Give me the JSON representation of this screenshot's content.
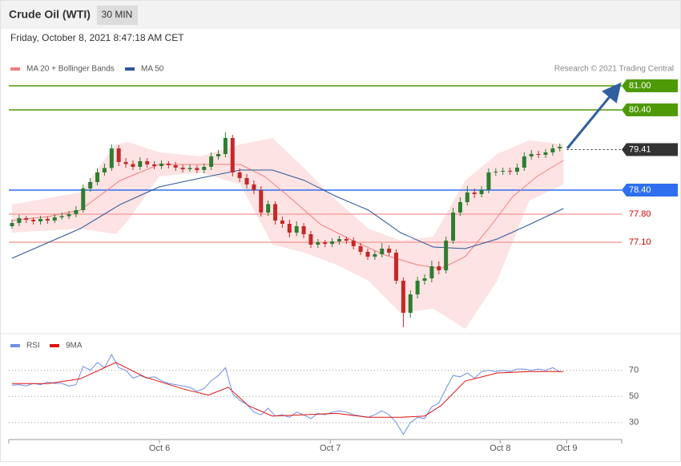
{
  "header": {
    "title": "Crude Oil (WTI)",
    "interval": "30 MIN",
    "date": "Friday, October 8, 2021 8:47:18 AM CET"
  },
  "chart_data": [
    {
      "type": "candlestick",
      "credit": "Research © 2021 Trading Central",
      "xlim": [
        -0.45,
        85.7
      ],
      "ylim": [
        74.9,
        81.7
      ],
      "up_color": "#2e7d32",
      "down_color": "#c62828",
      "open": [
        77.5,
        77.58,
        77.7,
        77.66,
        77.62,
        77.68,
        77.64,
        77.72,
        77.75,
        77.8,
        77.9,
        78.44,
        78.6,
        78.84,
        78.95,
        79.44,
        79.1,
        79.05,
        78.98,
        79.12,
        79.04,
        79.0,
        79.06,
        79.02,
        78.96,
        78.92,
        78.95,
        78.9,
        78.98,
        79.24,
        79.3,
        79.7,
        78.84,
        78.7,
        78.54,
        78.4,
        77.84,
        78.05,
        77.64,
        77.56,
        77.34,
        77.5,
        77.3,
        77.04,
        77.1,
        77.06,
        77.12,
        77.18,
        77.14,
        77.0,
        76.86,
        76.74,
        76.8,
        76.94,
        76.84,
        76.14,
        75.34,
        75.8,
        76.14,
        76.2,
        76.5,
        76.4,
        77.14,
        77.84,
        78.1,
        78.34,
        78.3,
        78.4,
        78.84,
        78.86,
        78.88,
        78.86,
        78.96,
        79.24,
        79.3,
        79.28,
        79.34,
        79.44
      ],
      "high": [
        77.66,
        77.78,
        77.76,
        77.72,
        77.76,
        77.74,
        77.8,
        77.84,
        77.88,
        78.0,
        78.54,
        78.7,
        78.94,
        79.06,
        79.54,
        79.52,
        79.2,
        79.14,
        79.22,
        79.2,
        79.12,
        79.14,
        79.12,
        79.1,
        79.04,
        79.04,
        79.02,
        79.06,
        79.34,
        79.4,
        79.84,
        79.78,
        78.94,
        78.8,
        78.64,
        78.5,
        78.14,
        78.12,
        77.74,
        77.66,
        77.62,
        77.58,
        77.38,
        77.18,
        77.16,
        77.2,
        77.26,
        77.24,
        77.22,
        77.08,
        76.94,
        76.88,
        77.08,
        77.02,
        76.92,
        76.22,
        75.9,
        76.24,
        76.3,
        76.64,
        76.62,
        77.24,
        77.96,
        78.22,
        78.5,
        78.44,
        78.5,
        78.94,
        78.94,
        78.96,
        78.96,
        79.06,
        79.34,
        79.4,
        79.38,
        79.42,
        79.54,
        79.56
      ],
      "low": [
        77.44,
        77.5,
        77.58,
        77.54,
        77.54,
        77.56,
        77.58,
        77.66,
        77.68,
        77.72,
        77.84,
        78.36,
        78.52,
        78.76,
        78.88,
        79.0,
        78.96,
        78.9,
        78.9,
        78.96,
        78.92,
        78.92,
        78.94,
        78.88,
        78.84,
        78.86,
        78.82,
        78.82,
        78.9,
        79.16,
        79.22,
        78.74,
        78.6,
        78.44,
        78.3,
        77.74,
        77.76,
        77.54,
        77.46,
        77.22,
        77.26,
        77.2,
        76.96,
        76.96,
        76.98,
        76.98,
        77.04,
        77.06,
        76.92,
        76.78,
        76.66,
        76.66,
        76.72,
        76.76,
        76.06,
        74.98,
        75.22,
        75.7,
        76.04,
        76.1,
        76.3,
        76.32,
        77.06,
        77.76,
        78.02,
        78.2,
        78.22,
        78.32,
        78.76,
        78.78,
        78.78,
        78.78,
        78.88,
        79.16,
        79.2,
        79.2,
        79.26,
        79.36
      ],
      "close": [
        77.58,
        77.7,
        77.66,
        77.62,
        77.68,
        77.64,
        77.72,
        77.75,
        77.8,
        77.9,
        78.44,
        78.6,
        78.84,
        78.95,
        79.44,
        79.1,
        79.05,
        78.98,
        79.12,
        79.04,
        79.0,
        79.06,
        79.02,
        78.96,
        78.92,
        78.95,
        78.9,
        78.98,
        79.24,
        79.3,
        79.7,
        78.84,
        78.7,
        78.54,
        78.4,
        77.84,
        78.05,
        77.64,
        77.56,
        77.34,
        77.5,
        77.3,
        77.04,
        77.1,
        77.06,
        77.12,
        77.18,
        77.14,
        77.0,
        76.86,
        76.74,
        76.8,
        76.94,
        76.84,
        76.14,
        75.34,
        75.8,
        76.14,
        76.2,
        76.5,
        76.4,
        77.14,
        77.84,
        78.1,
        78.34,
        78.3,
        78.4,
        78.84,
        78.86,
        78.88,
        78.86,
        78.96,
        79.24,
        79.3,
        79.28,
        79.34,
        79.44,
        79.48
      ],
      "series": [
        {
          "name": "MA 20 + Bollinger Bands",
          "color": "#f08080",
          "x": [
            0,
            5.1,
            9.6,
            15.2,
            20.7,
            26.5,
            32.1,
            35.5,
            38.9,
            43.4,
            47.9,
            52.4,
            56.9,
            60.3,
            63.7,
            67.0,
            70.4,
            73.8,
            77.5
          ],
          "values": [
            77.64,
            77.74,
            77.9,
            78.64,
            79.04,
            79.04,
            79.04,
            78.74,
            78.24,
            77.54,
            77.14,
            76.78,
            76.54,
            76.44,
            76.74,
            77.44,
            78.24,
            78.74,
            79.14
          ],
          "band": {
            "color": "#fde3e3",
            "x": [
              0,
              9.6,
              14.6,
              16.3,
              20.7,
              26.5,
              32.1,
              36.6,
              41.1,
              45.6,
              50.1,
              54.6,
              59.2,
              63.7,
              68.2,
              72.7,
              77.5
            ],
            "upper": [
              78.04,
              78.34,
              79.54,
              79.6,
              79.34,
              79.24,
              79.54,
              79.7,
              78.94,
              78.14,
              77.44,
              77.14,
              77.24,
              78.64,
              79.3,
              79.64,
              79.54
            ],
            "lower": [
              77.34,
              77.44,
              77.3,
              77.64,
              78.74,
              78.84,
              78.54,
              77.04,
              76.84,
              76.54,
              76.14,
              75.34,
              75.44,
              74.94,
              76.14,
              78.14,
              78.54
            ]
          }
        },
        {
          "name": "MA 50",
          "color": "#2f5597",
          "x": [
            0,
            9.6,
            15.2,
            20.7,
            26.5,
            32.1,
            36.6,
            41.1,
            45.6,
            50.1,
            54.6,
            59.2,
            63.7,
            68.2,
            72.7,
            77.5
          ],
          "values": [
            76.7,
            77.44,
            78.04,
            78.48,
            78.7,
            78.9,
            78.9,
            78.64,
            78.24,
            77.9,
            77.34,
            76.98,
            76.94,
            77.18,
            77.54,
            77.94
          ]
        }
      ],
      "levels": [
        {
          "value": 81,
          "label": "81.00",
          "color": "#4e9a06",
          "box": true,
          "dotted": false
        },
        {
          "value": 80.4,
          "label": "80.40",
          "color": "#4e9a06",
          "box": true,
          "dotted": false
        },
        {
          "value": 79.41,
          "label": "79.41",
          "color": "#333333",
          "box": true,
          "dotted": true
        },
        {
          "value": 78.4,
          "label": "78.40",
          "color": "#2f6ff0",
          "box": true,
          "dotted": false
        },
        {
          "value": 77.8,
          "label": "77.80",
          "color": "#cc0000",
          "line_color": "#f5a3a3",
          "box": false,
          "dotted": false
        },
        {
          "value": 77.1,
          "label": "77.10",
          "color": "#cc0000",
          "line_color": "#f5a3a3",
          "box": false,
          "dotted": false
        }
      ]
    },
    {
      "type": "line",
      "xlim": [
        -0.45,
        85.7
      ],
      "ylim": [
        17,
        95
      ],
      "yticks": [
        30,
        50,
        70
      ],
      "xticks": [
        {
          "value": 20.73,
          "label": "Oct 6"
        },
        {
          "value": 44.73,
          "label": "Oct 7"
        },
        {
          "value": 68.62,
          "label": "Oct 8"
        },
        {
          "value": 77.97,
          "label": "Oct 9"
        }
      ],
      "series": [
        {
          "name": "RSI",
          "color": "#6f8fe6",
          "values": [
            58.6,
            59,
            58,
            60,
            59,
            61,
            60,
            60,
            58,
            59,
            73,
            70,
            76,
            72,
            82,
            72,
            70,
            64,
            66,
            64,
            65,
            62,
            60,
            59,
            58,
            57,
            54,
            56,
            62,
            66,
            72,
            52,
            47,
            44,
            38,
            36,
            41,
            35,
            36,
            34,
            38,
            36,
            33,
            37,
            36,
            38,
            39,
            38,
            36,
            35,
            34,
            36,
            39,
            36,
            30,
            21,
            30,
            34,
            33,
            42,
            45,
            56,
            66,
            65,
            68,
            64,
            69,
            70,
            69,
            70,
            69,
            71,
            71,
            70,
            71,
            70,
            72,
            69
          ]
        },
        {
          "name": "9MA",
          "color": "#e01010",
          "x": [
            0,
            5.1,
            9.6,
            14.6,
            18.6,
            24.2,
            27.6,
            30.4,
            33.2,
            36.6,
            41.1,
            45.6,
            50.1,
            54.6,
            58,
            60.3,
            63.7,
            68.2,
            72.7,
            77.5
          ],
          "values": [
            59.8,
            59.8,
            63.5,
            76,
            65,
            55.5,
            51,
            57,
            43,
            35,
            36,
            37,
            34,
            34,
            35,
            43,
            61.7,
            68,
            69,
            69
          ]
        }
      ]
    }
  ]
}
